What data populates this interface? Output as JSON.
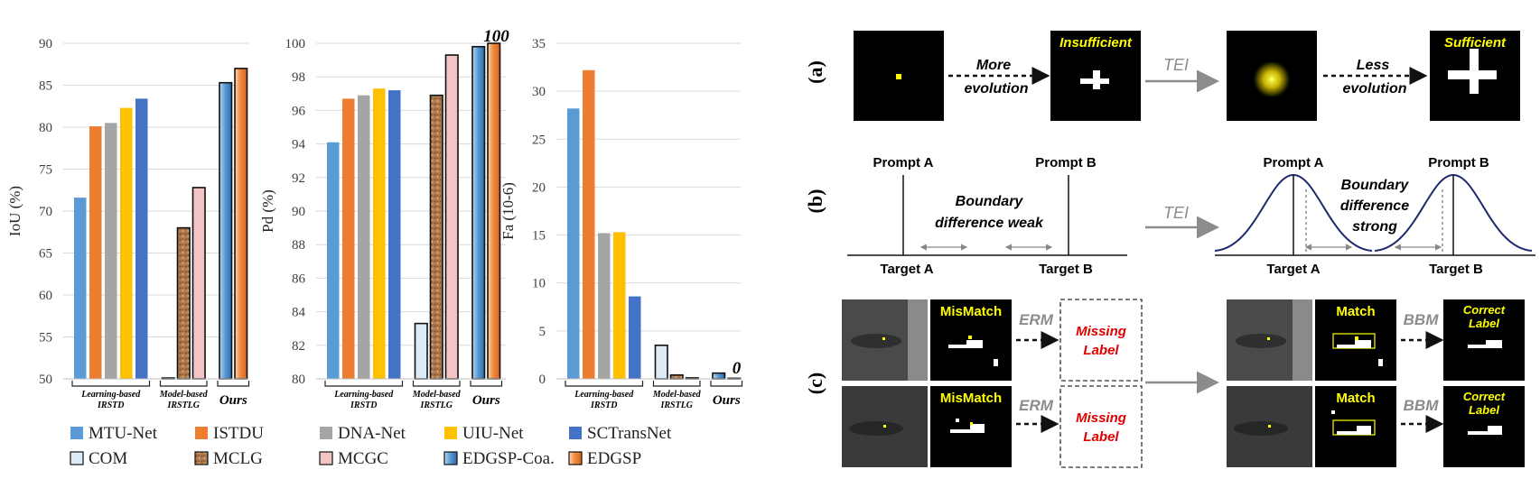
{
  "chart_data": [
    {
      "type": "bar",
      "ylabel": "IoU (%)",
      "ylim": [
        50,
        90
      ],
      "yticks": [
        50,
        55,
        60,
        65,
        70,
        75,
        80,
        85,
        90
      ],
      "groups": [
        {
          "label": "Learning-based IRSTD",
          "values": [
            71.6,
            80.1,
            80.5,
            82.3,
            83.4
          ]
        },
        {
          "label": "Model-based IRSTLG",
          "values": [
            50.1,
            68.0,
            72.8
          ]
        },
        {
          "label": "Ours",
          "values": [
            85.3,
            87.0
          ]
        }
      ],
      "annotation": ""
    },
    {
      "type": "bar",
      "ylabel": "Pd (%)",
      "ylim": [
        80,
        100
      ],
      "yticks": [
        80,
        82,
        84,
        86,
        88,
        90,
        92,
        94,
        96,
        98,
        100
      ],
      "groups": [
        {
          "label": "Learning-based IRSTD",
          "values": [
            94.1,
            96.7,
            96.9,
            97.3,
            97.2
          ]
        },
        {
          "label": "Model-based IRSTLG",
          "values": [
            83.3,
            96.9,
            99.3
          ]
        },
        {
          "label": "Ours",
          "values": [
            99.8,
            100
          ]
        }
      ],
      "annotation": "100"
    },
    {
      "type": "bar",
      "ylabel": "Fa (10-6)",
      "ylim": [
        0,
        35
      ],
      "yticks": [
        0,
        5,
        10,
        15,
        20,
        25,
        30,
        35
      ],
      "groups": [
        {
          "label": "Learning-based IRSTD",
          "values": [
            28.2,
            32.2,
            15.2,
            15.3,
            8.6
          ]
        },
        {
          "label": "Model-based IRSTLG",
          "values": [
            3.5,
            0.4,
            0.1
          ]
        },
        {
          "label": "Ours",
          "values": [
            0.6,
            0
          ]
        }
      ],
      "annotation": "0"
    }
  ],
  "legend": [
    {
      "name": "MTU-Net",
      "color": "#5b9bd5",
      "pattern": "solid"
    },
    {
      "name": "ISTDU",
      "color": "#ed7d31",
      "pattern": "solid"
    },
    {
      "name": "DNA-Net",
      "color": "#a5a5a5",
      "pattern": "solid"
    },
    {
      "name": "UIU-Net",
      "color": "#ffc000",
      "pattern": "solid"
    },
    {
      "name": "SCTransNet",
      "color": "#4472c4",
      "pattern": "solid"
    },
    {
      "name": "COM",
      "color": "#ddebf7",
      "pattern": "outlined"
    },
    {
      "name": "MCLG",
      "color": "#b07a4f",
      "pattern": "speckle"
    },
    {
      "name": "MCGC",
      "color": "#f2c4c4",
      "pattern": "outlined"
    },
    {
      "name": "EDGSP-Coa.",
      "color": "#5b9bd5",
      "pattern": "gradient"
    },
    {
      "name": "EDGSP",
      "color": "#f4a460",
      "pattern": "gradient"
    }
  ],
  "diagram": {
    "row_labels": [
      "(a)",
      "(b)",
      "(c)"
    ],
    "a": {
      "arrow1": [
        "More",
        "evolution"
      ],
      "insufficient": "Insufficient",
      "tei": "TEI",
      "arrow2": [
        "Less",
        "evolution"
      ],
      "sufficient": "Sufficient"
    },
    "b": {
      "prompt_a": "Prompt A",
      "prompt_b": "Prompt B",
      "target_a": "Target A",
      "target_b": "Target B",
      "weak": [
        "Boundary",
        "difference weak"
      ],
      "strong": [
        "Boundary",
        "difference",
        "strong"
      ],
      "tei": "TEI"
    },
    "c": {
      "mismatch": "MisMatch",
      "match": "Match",
      "erm": "ERM",
      "bbm": "BBM",
      "missing": [
        "Missing",
        "Label"
      ],
      "correct": [
        "Correct",
        "Label"
      ]
    }
  }
}
